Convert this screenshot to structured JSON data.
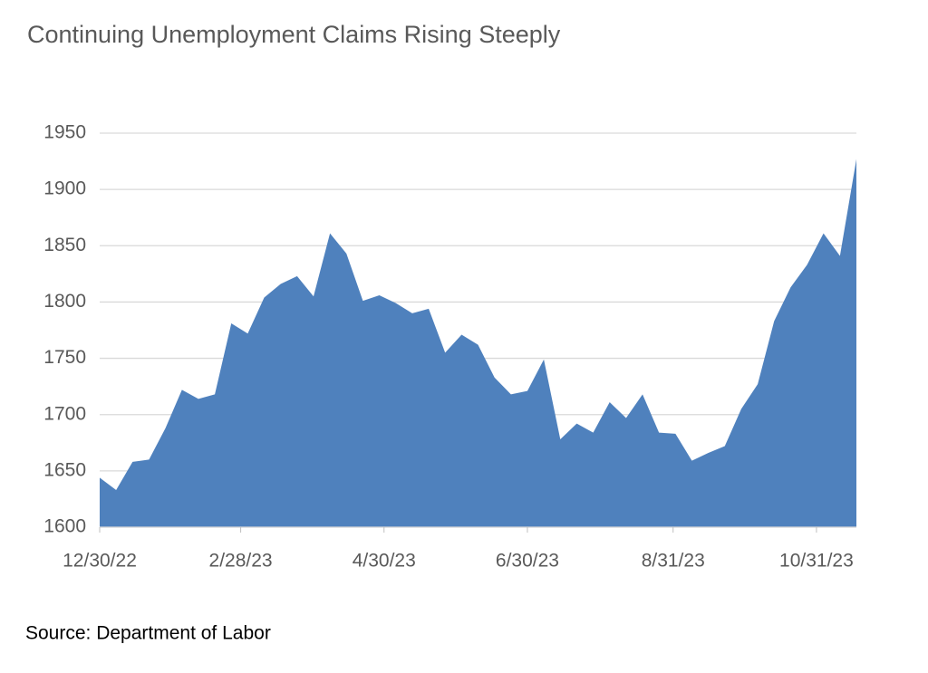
{
  "chart_data": {
    "type": "area",
    "title": "Continuing Unemployment Claims Rising Steeply",
    "source": "Source:  Department of Labor",
    "color": "#4f81bd",
    "grid": true,
    "x": [
      "2022-12-30",
      "2023-01-06",
      "2023-01-13",
      "2023-01-20",
      "2023-01-27",
      "2023-02-03",
      "2023-02-10",
      "2023-02-17",
      "2023-02-24",
      "2023-03-03",
      "2023-03-10",
      "2023-03-17",
      "2023-03-24",
      "2023-03-31",
      "2023-04-07",
      "2023-04-14",
      "2023-04-21",
      "2023-04-28",
      "2023-05-05",
      "2023-05-12",
      "2023-05-19",
      "2023-05-26",
      "2023-06-02",
      "2023-06-09",
      "2023-06-16",
      "2023-06-23",
      "2023-06-30",
      "2023-07-07",
      "2023-07-14",
      "2023-07-21",
      "2023-07-28",
      "2023-08-04",
      "2023-08-11",
      "2023-08-18",
      "2023-08-25",
      "2023-09-01",
      "2023-09-08",
      "2023-09-15",
      "2023-09-22",
      "2023-09-29",
      "2023-10-06",
      "2023-10-13",
      "2023-10-20",
      "2023-10-27",
      "2023-11-03",
      "2023-11-10",
      "2023-11-17"
    ],
    "values": [
      1644,
      1633,
      1658,
      1660,
      1688,
      1722,
      1714,
      1718,
      1781,
      1772,
      1804,
      1816,
      1823,
      1805,
      1861,
      1843,
      1801,
      1806,
      1799,
      1790,
      1794,
      1755,
      1771,
      1762,
      1733,
      1718,
      1721,
      1749,
      1678,
      1692,
      1684,
      1711,
      1697,
      1718,
      1684,
      1683,
      1659,
      1666,
      1672,
      1705,
      1727,
      1783,
      1813,
      1833,
      1861,
      1841,
      1927
    ],
    "xlim": [
      "2022-12-30",
      "2023-11-17"
    ],
    "xticks": [
      {
        "value": "2022-12-30",
        "label": "12/30/22"
      },
      {
        "value": "2023-02-28",
        "label": "2/28/23"
      },
      {
        "value": "2023-04-30",
        "label": "4/30/23"
      },
      {
        "value": "2023-06-30",
        "label": "6/30/23"
      },
      {
        "value": "2023-08-31",
        "label": "8/31/23"
      },
      {
        "value": "2023-10-31",
        "label": "10/31/23"
      }
    ],
    "ylim": [
      1600,
      1950
    ],
    "yticks": [
      1600,
      1650,
      1700,
      1750,
      1800,
      1850,
      1900,
      1950
    ]
  }
}
